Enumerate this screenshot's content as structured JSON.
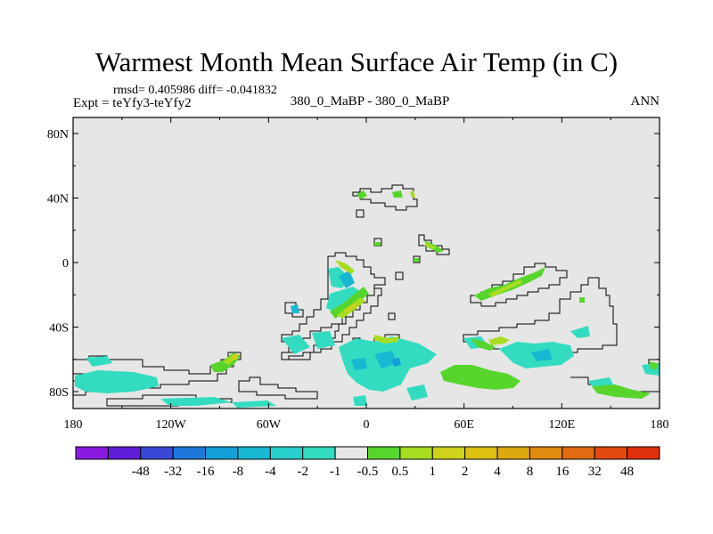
{
  "title": "Warmest Month Mean Surface Air Temp (in C)",
  "stats": "rmsd= 0.405986 diff= -0.041832",
  "expt": "Expt = teYfy3-teYfy2",
  "comparison": "380_0_MaBP - 380_0_MaBP",
  "season": "ANN",
  "lat_labels": [
    {
      "text": "80N",
      "value": 80
    },
    {
      "text": "40N",
      "value": 40
    },
    {
      "text": "0",
      "value": 0
    },
    {
      "text": "40S",
      "value": -40
    },
    {
      "text": "80S",
      "value": -80
    }
  ],
  "lon_labels": [
    {
      "text": "180",
      "value": -180
    },
    {
      "text": "120W",
      "value": -120
    },
    {
      "text": "60W",
      "value": -60
    },
    {
      "text": "0",
      "value": 0
    },
    {
      "text": "60E",
      "value": 60
    },
    {
      "text": "120E",
      "value": 120
    },
    {
      "text": "180",
      "value": 180
    }
  ],
  "colorbar": {
    "colors": [
      "#8a1ae0",
      "#5e1ed8",
      "#3b47d6",
      "#1e78dc",
      "#159fd8",
      "#18b8d2",
      "#27cfcc",
      "#33dcc0",
      "#e6e6e6",
      "#57d52c",
      "#a7dc20",
      "#cfd21a",
      "#dcc012",
      "#dca80e",
      "#df8a10",
      "#e06a10",
      "#e04a0e",
      "#e0300c"
    ],
    "labels": [
      "-48",
      "-32",
      "-16",
      "-8",
      "-4",
      "-2",
      "-1",
      "-0.5",
      "0.5",
      "1",
      "2",
      "4",
      "8",
      "16",
      "32",
      "48"
    ]
  }
}
